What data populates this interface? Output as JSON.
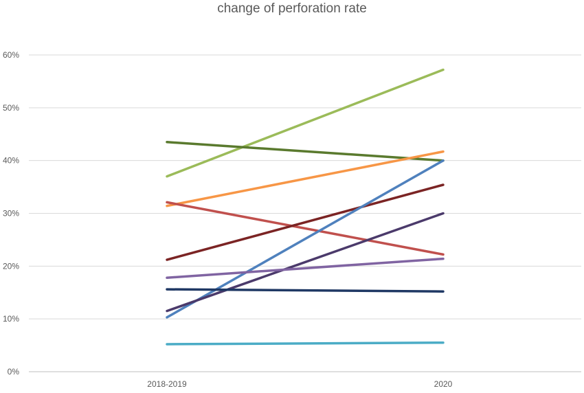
{
  "chart_data": {
    "type": "line",
    "title": "change of perforation rate",
    "xlabel": "",
    "ylabel": "",
    "categories": [
      "2018-2019",
      "2020"
    ],
    "ylim": [
      0,
      0.6
    ],
    "yticks": [
      {
        "value": 0,
        "label": "0%"
      },
      {
        "value": 0.1,
        "label": "10%"
      },
      {
        "value": 0.2,
        "label": "20%"
      },
      {
        "value": 0.3,
        "label": "30%"
      },
      {
        "value": 0.4,
        "label": "40%"
      },
      {
        "value": 0.5,
        "label": "50%"
      },
      {
        "value": 0.6,
        "label": "60%"
      }
    ],
    "grid": true,
    "legend": "none",
    "series": [
      {
        "color": "#9BBB59",
        "values": [
          0.37,
          0.572
        ]
      },
      {
        "color": "#5A7A2E",
        "values": [
          0.435,
          0.4
        ]
      },
      {
        "color": "#F79646",
        "values": [
          0.314,
          0.417
        ]
      },
      {
        "color": "#C0504D",
        "values": [
          0.321,
          0.222
        ]
      },
      {
        "color": "#7B2424",
        "values": [
          0.212,
          0.354
        ]
      },
      {
        "color": "#4F81BD",
        "values": [
          0.103,
          0.4
        ]
      },
      {
        "color": "#4B3A6B",
        "values": [
          0.115,
          0.3
        ]
      },
      {
        "color": "#8064A2",
        "values": [
          0.178,
          0.214
        ]
      },
      {
        "color": "#1F3864",
        "values": [
          0.156,
          0.152
        ]
      },
      {
        "color": "#4BACC6",
        "values": [
          0.052,
          0.055
        ]
      }
    ]
  }
}
